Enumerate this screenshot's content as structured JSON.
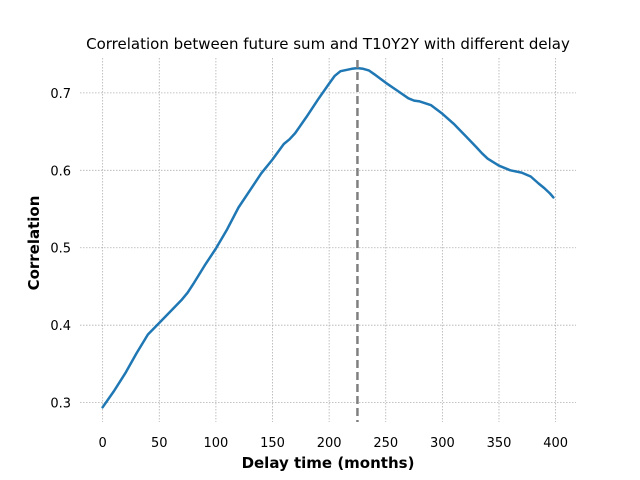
{
  "chart_data": {
    "type": "line",
    "title": "Correlation between future sum and T10Y2Y with different delay",
    "xlabel": "Delay time (months)",
    "ylabel": "Correlation",
    "xlim": [
      -20,
      418
    ],
    "ylim": [
      0.275,
      0.745
    ],
    "x_ticks": [
      0,
      50,
      100,
      150,
      200,
      250,
      300,
      350,
      400
    ],
    "y_ticks": [
      0.3,
      0.4,
      0.5,
      0.6,
      0.7
    ],
    "x_tick_labels": [
      "0",
      "50",
      "100",
      "150",
      "200",
      "250",
      "300",
      "350",
      "400"
    ],
    "y_tick_labels": [
      "0.3",
      "0.4",
      "0.5",
      "0.6",
      "0.7"
    ],
    "grid": true,
    "series": [
      {
        "color": "#1f77b4",
        "x": [
          0,
          10,
          20,
          30,
          40,
          50,
          60,
          70,
          75,
          80,
          90,
          100,
          110,
          120,
          130,
          140,
          150,
          160,
          165,
          170,
          180,
          190,
          200,
          205,
          210,
          220,
          225,
          230,
          235,
          240,
          250,
          260,
          270,
          275,
          280,
          290,
          300,
          310,
          320,
          330,
          335,
          340,
          350,
          360,
          370,
          378,
          385,
          390,
          395,
          398
        ],
        "y": [
          0.294,
          0.315,
          0.338,
          0.364,
          0.388,
          0.403,
          0.418,
          0.433,
          0.442,
          0.453,
          0.477,
          0.499,
          0.524,
          0.552,
          0.574,
          0.596,
          0.614,
          0.634,
          0.64,
          0.648,
          0.669,
          0.691,
          0.712,
          0.722,
          0.728,
          0.731,
          0.732,
          0.731,
          0.729,
          0.724,
          0.713,
          0.703,
          0.693,
          0.69,
          0.689,
          0.684,
          0.673,
          0.66,
          0.645,
          0.63,
          0.622,
          0.615,
          0.606,
          0.6,
          0.597,
          0.592,
          0.583,
          0.577,
          0.57,
          0.565
        ]
      }
    ],
    "vline": {
      "x": 225,
      "color": "#808080",
      "style": "dashed"
    }
  }
}
